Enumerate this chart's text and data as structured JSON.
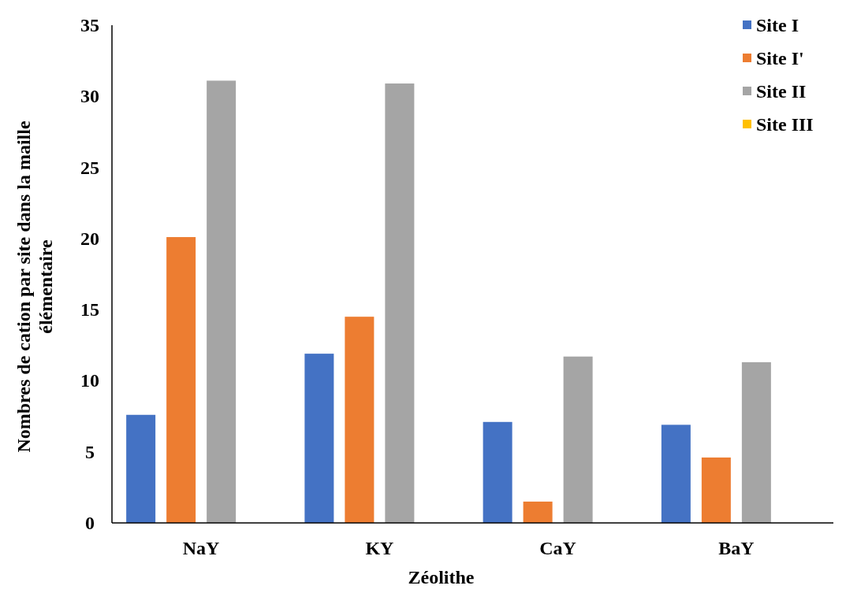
{
  "chart_data": {
    "type": "bar",
    "xlabel": "Zéolithe",
    "ylabel": "Nombres de cation par site dans la maille élémentaire",
    "categories": [
      "NaY",
      "KY",
      "CaY",
      "BaY"
    ],
    "series": [
      {
        "name": "Site I",
        "color": "#4472c4",
        "values": [
          7.6,
          11.9,
          7.1,
          6.9
        ]
      },
      {
        "name": "Site I'",
        "color": "#ed7d31",
        "values": [
          20.1,
          14.5,
          1.5,
          4.6
        ]
      },
      {
        "name": "Site II",
        "color": "#a5a5a5",
        "values": [
          31.1,
          30.9,
          11.7,
          11.3
        ]
      },
      {
        "name": "Site III",
        "color": "#ffc000",
        "values": [
          0,
          0,
          0,
          0
        ]
      }
    ],
    "ylim": [
      0,
      35
    ],
    "yticks": [
      0,
      5,
      10,
      15,
      20,
      25,
      30,
      35
    ],
    "grid": false,
    "legend": "top right"
  }
}
